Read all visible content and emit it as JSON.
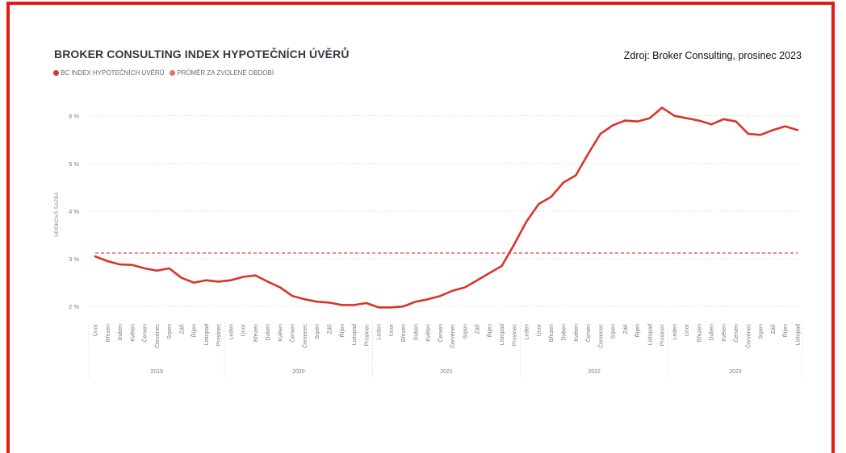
{
  "header": {
    "title": "BROKER CONSULTING INDEX HYPOTEČNÍCH ÚVĚRŮ",
    "source": "Zdroj: Broker Consulting, prosinec 2023"
  },
  "colors": {
    "frame": "#e31b17",
    "series": "#d9342b",
    "average": "#e8706a",
    "grid": "#d8d8d8"
  },
  "chart_data": {
    "type": "line",
    "title": "BROKER CONSULTING INDEX HYPOTEČNÍCH ÚVĚRŮ",
    "ylabel": "ÚROKOVÁ SAZBA",
    "xlabel": "",
    "ylim": [
      1.8,
      6.4
    ],
    "yticks": [
      2,
      3,
      4,
      5,
      6
    ],
    "ytick_labels": [
      "2 %",
      "3 %",
      "4 %",
      "5 %",
      "6 %"
    ],
    "grid": true,
    "legend_placement": "top-left",
    "categories": [
      "Únor",
      "Březen",
      "Duben",
      "Květen",
      "Červen",
      "Červenec",
      "Srpen",
      "Září",
      "Říjen",
      "Listopad",
      "Prosinec",
      "Leden",
      "Únor",
      "Březen",
      "Duben",
      "Květen",
      "Červen",
      "Červenec",
      "Srpen",
      "Září",
      "Říjen",
      "Listopad",
      "Prosinec",
      "Leden",
      "Únor",
      "Březen",
      "Duben",
      "Květen",
      "Červen",
      "Červenec",
      "Srpen",
      "Září",
      "Říjen",
      "Listopad",
      "Prosinec",
      "Leden",
      "Únor",
      "Březen",
      "Duben",
      "Květen",
      "Červen",
      "Červenec",
      "Srpen",
      "Září",
      "Říjen",
      "Listopad",
      "Prosinec",
      "Leden",
      "Únor",
      "Březen",
      "Duben",
      "Květen",
      "Červen",
      "Červenec",
      "Srpen",
      "Září",
      "Říjen",
      "Listopad"
    ],
    "year_groups": [
      {
        "label": "2019",
        "count": 11
      },
      {
        "label": "2020",
        "count": 12
      },
      {
        "label": "2021",
        "count": 12
      },
      {
        "label": "2022",
        "count": 12
      },
      {
        "label": "2023",
        "count": 11
      }
    ],
    "series": [
      {
        "name": "BC INDEX HYPOTEČNÍCH ÚVĚRŮ",
        "values": [
          3.05,
          2.95,
          2.88,
          2.87,
          2.8,
          2.75,
          2.8,
          2.6,
          2.5,
          2.55,
          2.52,
          2.55,
          2.62,
          2.65,
          2.52,
          2.4,
          2.22,
          2.15,
          2.1,
          2.08,
          2.03,
          2.03,
          2.07,
          1.98,
          1.98,
          2.0,
          2.1,
          2.15,
          2.22,
          2.33,
          2.4,
          2.55,
          2.7,
          2.85,
          3.3,
          3.78,
          4.15,
          4.3,
          4.6,
          4.75,
          5.2,
          5.62,
          5.8,
          5.9,
          5.88,
          5.95,
          6.17,
          6.0,
          5.95,
          5.9,
          5.82,
          5.93,
          5.88,
          5.62,
          5.6,
          5.7,
          5.78,
          5.7
        ]
      },
      {
        "name": "PRŮMĚR ZA ZVOLENÉ OBDOBÍ",
        "value": 3.12
      }
    ]
  }
}
